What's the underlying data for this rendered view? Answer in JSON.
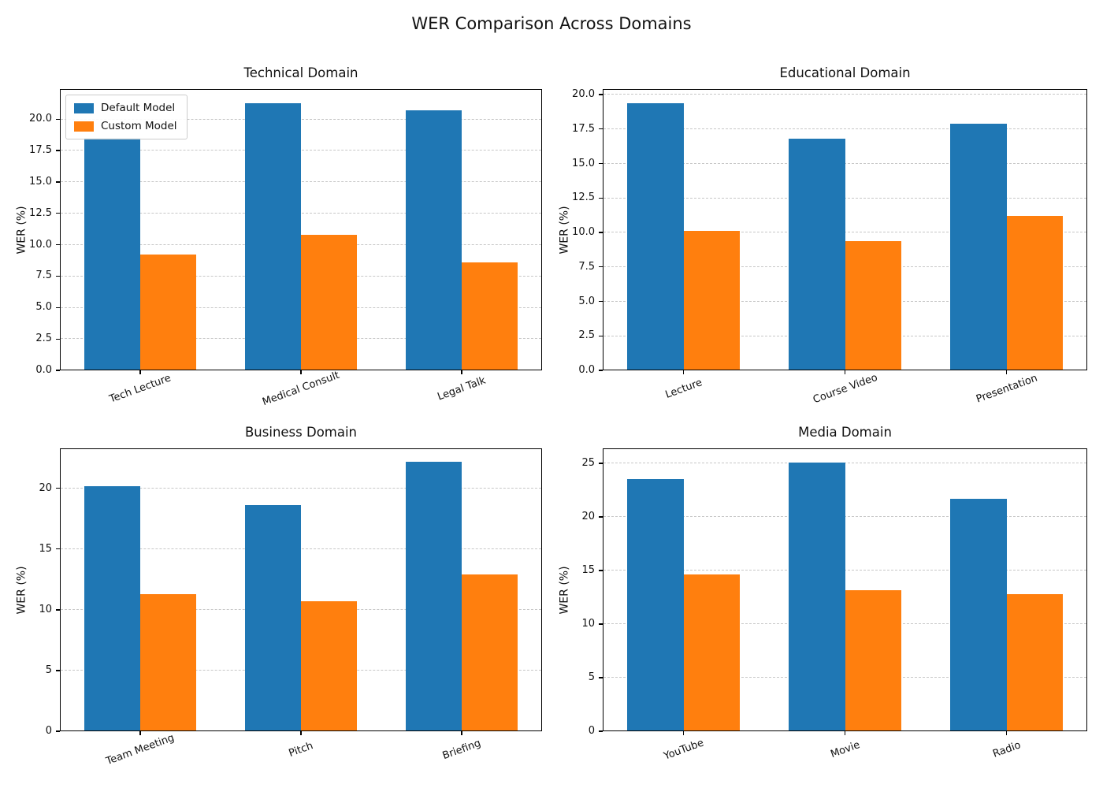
{
  "suptitle": "WER Comparison Across Domains",
  "colors": {
    "default_model": "#1f77b4",
    "custom_model": "#ff7f0e",
    "grid": "#c7c7c7",
    "axis": "#000000",
    "background": "#ffffff"
  },
  "legend": {
    "position": "upper left",
    "items": [
      {
        "label": "Default Model",
        "color": "#1f77b4"
      },
      {
        "label": "Custom Model",
        "color": "#ff7f0e"
      }
    ]
  },
  "chart_data": [
    {
      "type": "bar",
      "title": "Technical Domain",
      "xlabel": "",
      "ylabel": "WER (%)",
      "categories": [
        "Tech Lecture",
        "Medical Consult",
        "Legal Talk"
      ],
      "series": [
        {
          "name": "Default Model",
          "color": "#1f77b4",
          "values": [
            18.5,
            21.3,
            20.7
          ]
        },
        {
          "name": "Custom Model",
          "color": "#ff7f0e",
          "values": [
            9.2,
            10.8,
            8.6
          ]
        }
      ],
      "ylim": [
        0,
        22.4
      ],
      "yticks": [
        0,
        2.5,
        5,
        7.5,
        10,
        12.5,
        15,
        17.5,
        20
      ],
      "ytick_decimals": 1,
      "grid": "horizontal-dashed",
      "legend": true,
      "xtick_rotation": 20
    },
    {
      "type": "bar",
      "title": "Educational Domain",
      "xlabel": "",
      "ylabel": "WER (%)",
      "categories": [
        "Lecture",
        "Course Video",
        "Presentation"
      ],
      "series": [
        {
          "name": "Default Model",
          "color": "#1f77b4",
          "values": [
            19.4,
            16.8,
            17.9
          ]
        },
        {
          "name": "Custom Model",
          "color": "#ff7f0e",
          "values": [
            10.1,
            9.4,
            11.2
          ]
        }
      ],
      "ylim": [
        0,
        20.4
      ],
      "yticks": [
        0,
        2.5,
        5,
        7.5,
        10,
        12.5,
        15,
        17.5,
        20
      ],
      "ytick_decimals": 1,
      "grid": "horizontal-dashed",
      "legend": false,
      "xtick_rotation": 20
    },
    {
      "type": "bar",
      "title": "Business Domain",
      "xlabel": "",
      "ylabel": "WER (%)",
      "categories": [
        "Team Meeting",
        "Pitch",
        "Briefing"
      ],
      "series": [
        {
          "name": "Default Model",
          "color": "#1f77b4",
          "values": [
            20.2,
            18.6,
            22.2
          ]
        },
        {
          "name": "Custom Model",
          "color": "#ff7f0e",
          "values": [
            11.3,
            10.7,
            12.9
          ]
        }
      ],
      "ylim": [
        0,
        23.3
      ],
      "yticks": [
        0,
        5,
        10,
        15,
        20
      ],
      "ytick_decimals": 0,
      "grid": "horizontal-dashed",
      "legend": false,
      "xtick_rotation": 20
    },
    {
      "type": "bar",
      "title": "Media Domain",
      "xlabel": "",
      "ylabel": "WER (%)",
      "categories": [
        "YouTube",
        "Movie",
        "Radio"
      ],
      "series": [
        {
          "name": "Default Model",
          "color": "#1f77b4",
          "values": [
            23.5,
            25.1,
            21.7
          ]
        },
        {
          "name": "Custom Model",
          "color": "#ff7f0e",
          "values": [
            14.6,
            13.2,
            12.8
          ]
        }
      ],
      "ylim": [
        0,
        26.4
      ],
      "yticks": [
        0,
        5,
        10,
        15,
        20,
        25
      ],
      "ytick_decimals": 0,
      "grid": "horizontal-dashed",
      "legend": false,
      "xtick_rotation": 20
    }
  ]
}
